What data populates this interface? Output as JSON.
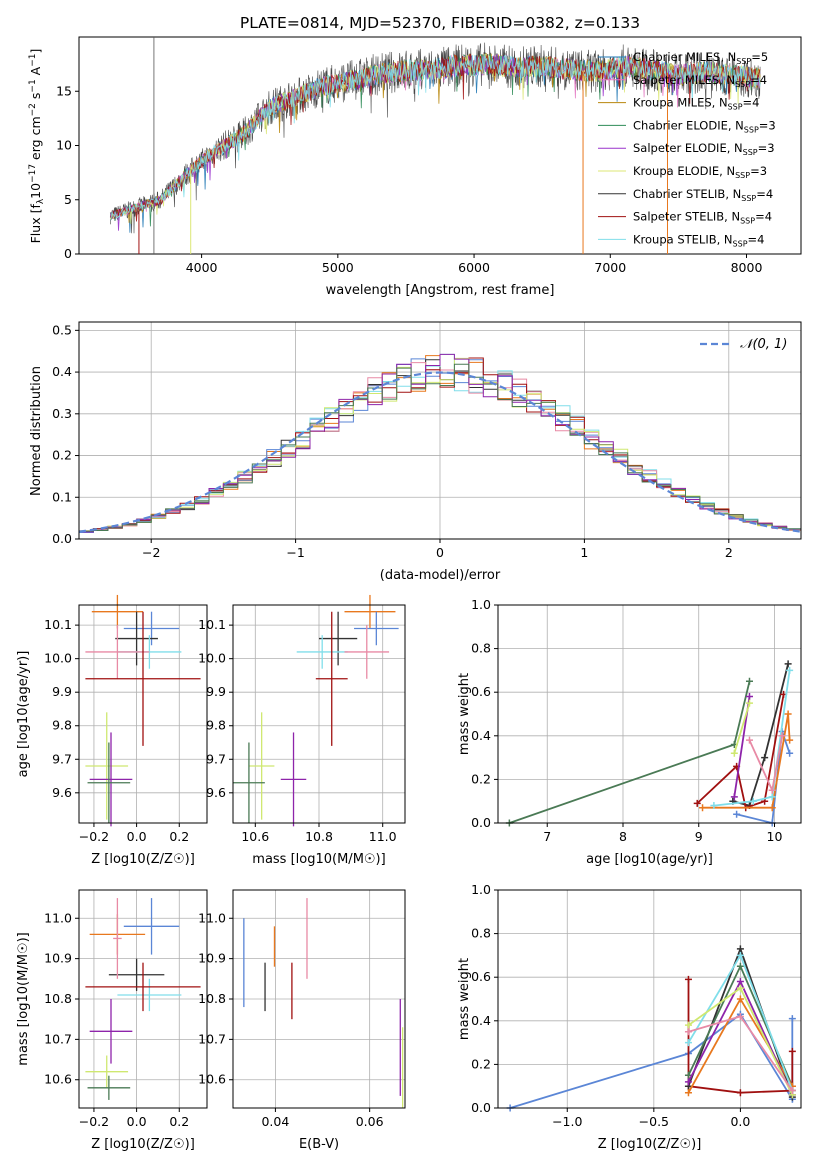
{
  "figure": {
    "title": "PLATE=0814, MJD=52370, FIBERID=0382, z=0.133",
    "colors": {
      "chabrier_miles": "#1f77b4",
      "salpeter_miles": "#e377c2",
      "kroupa_miles": "#b8860b",
      "chabrier_elodie": "#2e8b57",
      "salpeter_elodie": "#9932cc",
      "kroupa_elodie": "#dce775",
      "chabrier_stelib": "#333333",
      "salpeter_stelib": "#a01010",
      "kroupa_stelib": "#80deea",
      "fit_blue": "#5b86d6",
      "fit_orange": "#e8781e",
      "fit_green": "#4a7a55",
      "fit_pink": "#e88aa5",
      "fit_yellow": "#cfe870",
      "fit_purple": "#8e24aa"
    },
    "series_labels": [
      "Chabrier MILES, N",
      "Salpeter MILES, N",
      "Kroupa MILES, N",
      "Chabrier ELODIE, N",
      "Salpeter ELODIE, N",
      "Kroupa ELODIE, N",
      "Chabrier STELIB, N",
      "Salpeter STELIB, N",
      "Kroupa STELIB, N"
    ],
    "series_sub": "SSP",
    "series_counts": [
      "=5",
      "=4",
      "=4",
      "=3",
      "=3",
      "=3",
      "=4",
      "=4",
      "=4"
    ]
  },
  "chart_data": [
    {
      "type": "line",
      "title": "PLATE=0814, MJD=52370, FIBERID=0382, z=0.133",
      "xlabel": "wavelength [Angstrom, rest frame]",
      "ylabel": "Flux [fλ10⁻¹⁷ erg cm⁻² s⁻¹ A⁻¹]",
      "xlim": [
        3100,
        8400
      ],
      "ylim": [
        0,
        20
      ],
      "xticks": [
        "4000",
        "5000",
        "6000",
        "7000",
        "8000"
      ],
      "yticks": [
        "0",
        "5",
        "10",
        "15"
      ],
      "continuum": {
        "x": [
          3330,
          3500,
          3700,
          3900,
          4100,
          4300,
          4500,
          4700,
          4900,
          5100,
          5300,
          5500,
          5700,
          5900,
          6100,
          6300,
          6500,
          6700,
          6900,
          7100,
          7300,
          7500,
          7700,
          7900,
          8100
        ],
        "y": [
          3.5,
          4.2,
          5.0,
          7.5,
          9.5,
          11.0,
          13.5,
          14.5,
          15.5,
          16.0,
          16.6,
          16.9,
          17.0,
          17.4,
          17.5,
          17.2,
          17.3,
          17.0,
          16.8,
          17.3,
          17.0,
          16.5,
          16.8,
          16.5,
          16.2
        ]
      },
      "deep_drops_x": [
        3540,
        3920,
        6800,
        7420
      ],
      "grid": false,
      "legend": "right"
    },
    {
      "type": "histogram",
      "xlabel": "(data-model)/error",
      "ylabel": "Normed distribution",
      "xlim": [
        -2.5,
        2.5
      ],
      "ylim": [
        0,
        0.52
      ],
      "xticks": [
        "-2",
        "-1",
        "0",
        "1",
        "2"
      ],
      "yticks": [
        "0.0",
        "0.1",
        "0.2",
        "0.3",
        "0.4",
        "0.5"
      ],
      "bin_width": 0.1,
      "legend_label": "𝒩(0, 1)",
      "gaussian": {
        "mean": 0,
        "sigma": 1
      },
      "grid": true,
      "legend": "top-right"
    },
    {
      "type": "scatter",
      "xlabel": "Z [log10(Z/Z☉)]",
      "ylabel": "age  [log10(age/yr)]",
      "xlim": [
        -0.27,
        0.33
      ],
      "ylim": [
        9.51,
        10.16
      ],
      "xticks": [
        "-0.2",
        "0.0",
        "0.2"
      ],
      "yticks": [
        "9.6",
        "9.7",
        "9.8",
        "9.9",
        "10.0",
        "10.1"
      ],
      "points": [
        {
          "x": -0.09,
          "y": 10.14,
          "xerr": 0.12,
          "yerr": 0.05,
          "color": "fit_orange"
        },
        {
          "x": 0.07,
          "y": 10.09,
          "xerr": 0.13,
          "yerr": 0.05,
          "color": "fit_blue"
        },
        {
          "x": 0.0,
          "y": 10.06,
          "xerr": 0.1,
          "yerr": 0.08,
          "color": "chabrier_stelib"
        },
        {
          "x": 0.06,
          "y": 10.02,
          "xerr": 0.15,
          "yerr": 0.05,
          "color": "kroupa_stelib"
        },
        {
          "x": -0.09,
          "y": 10.02,
          "xerr": 0.15,
          "yerr": 0.08,
          "color": "fit_pink"
        },
        {
          "x": 0.03,
          "y": 9.94,
          "xerr": 0.27,
          "yerr": 0.2,
          "color": "salpeter_stelib"
        },
        {
          "x": -0.14,
          "y": 9.68,
          "xerr": 0.1,
          "yerr": 0.16,
          "color": "fit_yellow"
        },
        {
          "x": -0.12,
          "y": 9.64,
          "xerr": 0.1,
          "yerr": 0.14,
          "color": "fit_purple"
        },
        {
          "x": -0.13,
          "y": 9.63,
          "xerr": 0.1,
          "yerr": 0.12,
          "color": "fit_green"
        }
      ],
      "grid": true
    },
    {
      "type": "scatter",
      "xlabel": "mass [log10(M/M☉)]",
      "ylabel": "",
      "xlim": [
        10.53,
        11.07
      ],
      "ylim": [
        9.51,
        10.16
      ],
      "xticks": [
        "10.6",
        "10.8",
        "11.0"
      ],
      "yticks": [
        "9.6",
        "9.7",
        "9.8",
        "9.9",
        "10.0",
        "10.1"
      ],
      "points": [
        {
          "x": 10.96,
          "y": 10.14,
          "xerr": 0.08,
          "yerr": 0.05,
          "color": "fit_orange"
        },
        {
          "x": 10.98,
          "y": 10.09,
          "xerr": 0.07,
          "yerr": 0.05,
          "color": "fit_blue"
        },
        {
          "x": 10.86,
          "y": 10.06,
          "xerr": 0.06,
          "yerr": 0.08,
          "color": "chabrier_stelib"
        },
        {
          "x": 10.81,
          "y": 10.02,
          "xerr": 0.08,
          "yerr": 0.05,
          "color": "kroupa_stelib"
        },
        {
          "x": 10.95,
          "y": 10.02,
          "xerr": 0.07,
          "yerr": 0.08,
          "color": "fit_pink"
        },
        {
          "x": 10.84,
          "y": 9.94,
          "xerr": 0.05,
          "yerr": 0.2,
          "color": "salpeter_stelib"
        },
        {
          "x": 10.62,
          "y": 9.68,
          "xerr": 0.04,
          "yerr": 0.16,
          "color": "fit_yellow"
        },
        {
          "x": 10.72,
          "y": 9.64,
          "xerr": 0.04,
          "yerr": 0.14,
          "color": "fit_purple"
        },
        {
          "x": 10.58,
          "y": 9.63,
          "xerr": 0.05,
          "yerr": 0.12,
          "color": "fit_green"
        }
      ],
      "grid": true
    },
    {
      "type": "line",
      "xlabel": "age  [log10(age/yr)]",
      "ylabel": "mass weight",
      "xlim": [
        6.35,
        10.35
      ],
      "ylim": [
        0,
        1.0
      ],
      "xticks": [
        "7",
        "8",
        "9",
        "10"
      ],
      "yticks": [
        "0.0",
        "0.2",
        "0.4",
        "0.6",
        "0.8",
        "1.0"
      ],
      "series": [
        {
          "color": "fit_green",
          "x": [
            6.5,
            9.47,
            9.67
          ],
          "y": [
            0.0,
            0.36,
            0.65
          ]
        },
        {
          "color": "fit_blue",
          "x": [
            9.5,
            9.97,
            10.1,
            10.2
          ],
          "y": [
            0.04,
            0.0,
            0.42,
            0.32
          ]
        },
        {
          "color": "chabrier_stelib",
          "x": [
            9.45,
            9.67,
            9.87,
            10.18
          ],
          "y": [
            0.1,
            0.08,
            0.3,
            0.73
          ]
        },
        {
          "color": "salpeter_stelib",
          "x": [
            8.98,
            9.5,
            9.62,
            9.87,
            10.12
          ],
          "y": [
            0.09,
            0.26,
            0.07,
            0.1,
            0.59
          ]
        },
        {
          "color": "fit_orange",
          "x": [
            9.05,
            9.97,
            10.18,
            10.2
          ],
          "y": [
            0.07,
            0.07,
            0.5,
            0.38
          ]
        },
        {
          "color": "kroupa_stelib",
          "x": [
            9.2,
            9.72,
            9.97,
            10.2
          ],
          "y": [
            0.08,
            0.1,
            0.12,
            0.7
          ]
        },
        {
          "color": "fit_purple",
          "x": [
            9.47,
            9.67
          ],
          "y": [
            0.12,
            0.58
          ]
        },
        {
          "color": "fit_yellow",
          "x": [
            9.47,
            9.67
          ],
          "y": [
            0.32,
            0.55
          ]
        },
        {
          "color": "fit_pink",
          "x": [
            9.67,
            9.97,
            10.1
          ],
          "y": [
            0.38,
            0.15,
            0.4
          ]
        }
      ],
      "grid": true
    },
    {
      "type": "scatter",
      "xlabel": "Z [log10(Z/Z☉)]",
      "ylabel": "mass [log10(M/M☉)]",
      "xlim": [
        -0.27,
        0.33
      ],
      "ylim": [
        10.53,
        11.07
      ],
      "xticks": [
        "-0.2",
        "0.0",
        "0.2"
      ],
      "yticks": [
        "10.6",
        "10.7",
        "10.8",
        "10.9",
        "11.0"
      ],
      "points": [
        {
          "x": -0.09,
          "y": 10.96,
          "xerr": 0.13,
          "yerr": 0.05,
          "color": "fit_orange"
        },
        {
          "x": 0.07,
          "y": 10.98,
          "xerr": 0.13,
          "yerr": 0.07,
          "color": "fit_blue"
        },
        {
          "x": 0.0,
          "y": 10.86,
          "xerr": 0.13,
          "yerr": 0.04,
          "color": "chabrier_stelib"
        },
        {
          "x": 0.06,
          "y": 10.81,
          "xerr": 0.15,
          "yerr": 0.04,
          "color": "kroupa_stelib"
        },
        {
          "x": -0.09,
          "y": 10.95,
          "xerr": 0.02,
          "yerr": 0.1,
          "color": "fit_pink"
        },
        {
          "x": 0.03,
          "y": 10.83,
          "xerr": 0.27,
          "yerr": 0.06,
          "color": "salpeter_stelib"
        },
        {
          "x": -0.14,
          "y": 10.62,
          "xerr": 0.1,
          "yerr": 0.04,
          "color": "fit_yellow"
        },
        {
          "x": -0.12,
          "y": 10.72,
          "xerr": 0.1,
          "yerr": 0.08,
          "color": "fit_purple"
        },
        {
          "x": -0.13,
          "y": 10.58,
          "xerr": 0.1,
          "yerr": 0.03,
          "color": "fit_green"
        }
      ],
      "grid": true
    },
    {
      "type": "scatter",
      "xlabel": "E(B-V)",
      "ylabel": "",
      "xlim": [
        0.031,
        0.0675
      ],
      "ylim": [
        10.53,
        11.07
      ],
      "xticks": [
        "0.04",
        "0.06"
      ],
      "yticks": [
        "10.6",
        "10.7",
        "10.8",
        "10.9",
        "11.0"
      ],
      "points": [
        {
          "x": 0.0333,
          "y": 10.89,
          "yerr": 0.11,
          "color": "fit_blue"
        },
        {
          "x": 0.0378,
          "y": 10.83,
          "yerr": 0.06,
          "color": "chabrier_stelib"
        },
        {
          "x": 0.0398,
          "y": 10.93,
          "yerr": 0.05,
          "color": "fit_orange"
        },
        {
          "x": 0.0435,
          "y": 10.82,
          "yerr": 0.07,
          "color": "salpeter_stelib"
        },
        {
          "x": 0.0467,
          "y": 10.95,
          "yerr": 0.1,
          "color": "fit_pink"
        },
        {
          "x": 0.0665,
          "y": 10.68,
          "yerr": 0.12,
          "color": "fit_purple"
        },
        {
          "x": 0.067,
          "y": 10.63,
          "yerr": 0.1,
          "color": "fit_yellow"
        }
      ],
      "grid": true
    },
    {
      "type": "line",
      "xlabel": "Z [log10(Z/Z☉)]",
      "ylabel": "mass weight",
      "xlim": [
        -1.4,
        0.35
      ],
      "ylim": [
        0,
        1.0
      ],
      "xticks": [
        "-1.0",
        "-0.5",
        "0.0"
      ],
      "yticks": [
        "0.0",
        "0.2",
        "0.4",
        "0.6",
        "0.8",
        "1.0"
      ],
      "series": [
        {
          "color": "fit_blue",
          "x": [
            -1.33,
            -0.3,
            0.0,
            0.3,
            0.3
          ],
          "y": [
            0.0,
            0.25,
            0.43,
            0.04,
            0.41
          ]
        },
        {
          "color": "salpeter_stelib",
          "x": [
            -0.3,
            -0.3,
            0.0,
            0.3,
            0.3
          ],
          "y": [
            0.59,
            0.1,
            0.07,
            0.08,
            0.26
          ]
        },
        {
          "color": "chabrier_stelib",
          "x": [
            -0.3,
            0.0,
            0.3
          ],
          "y": [
            0.1,
            0.73,
            0.05
          ]
        },
        {
          "color": "fit_green",
          "x": [
            -0.3,
            0.0,
            0.3
          ],
          "y": [
            0.15,
            0.65,
            0.1
          ]
        },
        {
          "color": "fit_orange",
          "x": [
            -0.3,
            0.0,
            0.3
          ],
          "y": [
            0.07,
            0.5,
            0.1
          ]
        },
        {
          "color": "kroupa_stelib",
          "x": [
            -0.3,
            0.0,
            0.3
          ],
          "y": [
            0.3,
            0.7,
            0.08
          ]
        },
        {
          "color": "fit_purple",
          "x": [
            -0.3,
            0.0,
            0.3
          ],
          "y": [
            0.12,
            0.58,
            0.06
          ]
        },
        {
          "color": "fit_yellow",
          "x": [
            -0.3,
            0.0,
            0.3
          ],
          "y": [
            0.38,
            0.55,
            0.06
          ]
        },
        {
          "color": "fit_pink",
          "x": [
            -0.3,
            0.0,
            0.3
          ],
          "y": [
            0.35,
            0.42,
            0.08
          ]
        }
      ],
      "grid": true
    }
  ]
}
